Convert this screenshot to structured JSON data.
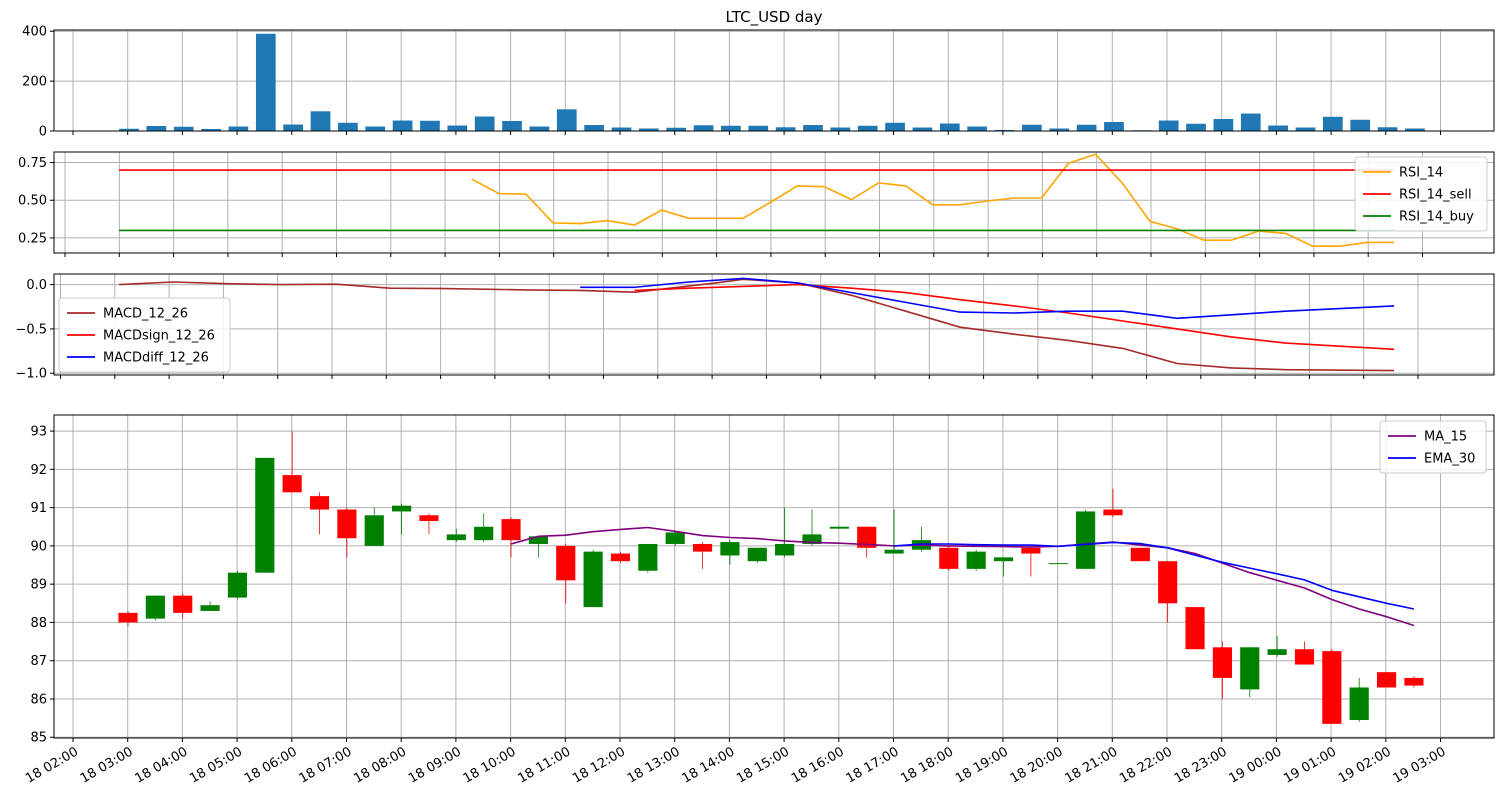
{
  "chart_data": [
    {
      "type": "bar",
      "panel": "volume",
      "title": "LTC_USD  day",
      "x_start": "2019-08-18 02:50",
      "x_step_minutes": 30,
      "values": [
        9,
        20,
        17,
        8,
        18,
        390,
        26,
        79,
        33,
        18,
        42,
        41,
        22,
        58,
        40,
        18,
        87,
        24,
        14,
        10,
        13,
        23,
        21,
        21,
        15,
        24,
        14,
        21,
        33,
        14,
        30,
        18,
        4,
        25,
        10,
        25,
        36,
        3,
        42,
        29,
        48,
        70,
        22,
        14,
        57,
        45,
        15,
        10
      ],
      "ylim": [
        0,
        405
      ],
      "yticks": [
        "0",
        "200",
        "400"
      ],
      "color": "#1f77b4",
      "grid": true
    },
    {
      "type": "line",
      "panel": "rsi",
      "ylim": [
        0.15,
        0.82
      ],
      "yticks": [
        "0.25",
        "0.50",
        "0.75"
      ],
      "legend_position": "top-right",
      "grid": true,
      "series": [
        {
          "name": "RSI_14",
          "color": "#ffa500",
          "start_index": 13,
          "values": [
            0.64,
            0.545,
            0.54,
            0.35,
            0.345,
            0.365,
            0.335,
            0.435,
            0.38,
            0.38,
            0.38,
            0.485,
            0.595,
            0.59,
            0.505,
            0.615,
            0.595,
            0.47,
            0.47,
            0.495,
            0.515,
            0.515,
            0.745,
            0.805,
            0.61,
            0.36,
            0.31,
            0.235,
            0.235,
            0.295,
            0.28,
            0.195,
            0.195,
            0.22,
            0.22
          ]
        },
        {
          "name": "RSI_14_sell",
          "color": "#ff0000",
          "start_index": 0,
          "end_index": 47,
          "constant": 0.7
        },
        {
          "name": "RSI_14_buy",
          "color": "#008000",
          "start_index": 0,
          "end_index": 47,
          "constant": 0.3
        }
      ]
    },
    {
      "type": "line",
      "panel": "macd",
      "ylim": [
        -1.02,
        0.12
      ],
      "yticks": [
        "0.0",
        "−0.5",
        "−1.0"
      ],
      "legend_position": "center-left",
      "grid": true,
      "series": [
        {
          "name": "MACD_12_26",
          "color": "#a52a2a",
          "points": [
            [
              0,
              0.0
            ],
            [
              2,
              0.03
            ],
            [
              4,
              0.01
            ],
            [
              6,
              0.0
            ],
            [
              8,
              0.005
            ],
            [
              10,
              -0.04
            ],
            [
              12,
              -0.045
            ],
            [
              15,
              -0.06
            ],
            [
              17,
              -0.065
            ],
            [
              19,
              -0.085
            ],
            [
              22,
              0.02
            ],
            [
              23,
              0.06
            ],
            [
              25,
              0.02
            ],
            [
              27,
              -0.12
            ],
            [
              29,
              -0.3
            ],
            [
              31,
              -0.48
            ],
            [
              33,
              -0.56
            ],
            [
              35,
              -0.63
            ],
            [
              37,
              -0.72
            ],
            [
              39,
              -0.89
            ],
            [
              41,
              -0.94
            ],
            [
              43,
              -0.96
            ],
            [
              47,
              -0.97
            ]
          ]
        },
        {
          "name": "MACDsign_12_26",
          "color": "#ff0000",
          "points": [
            [
              19,
              -0.065
            ],
            [
              21,
              -0.04
            ],
            [
              23,
              -0.02
            ],
            [
              25,
              0.0
            ],
            [
              27,
              -0.04
            ],
            [
              29,
              -0.09
            ],
            [
              31,
              -0.17
            ],
            [
              33,
              -0.24
            ],
            [
              35,
              -0.32
            ],
            [
              37,
              -0.41
            ],
            [
              39,
              -0.5
            ],
            [
              41,
              -0.59
            ],
            [
              43,
              -0.66
            ],
            [
              47,
              -0.73
            ]
          ]
        },
        {
          "name": "MACDdiff_12_26",
          "color": "#0000ff",
          "points": [
            [
              17,
              -0.03
            ],
            [
              19,
              -0.03
            ],
            [
              21,
              0.03
            ],
            [
              23,
              0.07
            ],
            [
              25,
              0.02
            ],
            [
              27,
              -0.09
            ],
            [
              29,
              -0.2
            ],
            [
              31,
              -0.31
            ],
            [
              33,
              -0.32
            ],
            [
              35,
              -0.3
            ],
            [
              37,
              -0.3
            ],
            [
              39,
              -0.38
            ],
            [
              41,
              -0.34
            ],
            [
              43,
              -0.3
            ],
            [
              47,
              -0.24
            ]
          ]
        }
      ]
    },
    {
      "type": "candlestick",
      "panel": "price",
      "ylim": [
        84.98,
        93.42
      ],
      "yticks": [
        "85",
        "86",
        "87",
        "88",
        "89",
        "90",
        "91",
        "92",
        "93"
      ],
      "legend_position": "top-right",
      "grid": true,
      "up_color": "#008000",
      "down_color": "#ff0000",
      "ohlc": [
        [
          88.25,
          88.3,
          87.9,
          88.0
        ],
        [
          88.1,
          88.7,
          88.05,
          88.7
        ],
        [
          88.7,
          88.75,
          88.1,
          88.25
        ],
        [
          88.3,
          88.55,
          88.3,
          88.45
        ],
        [
          88.65,
          89.35,
          88.6,
          89.3
        ],
        [
          89.3,
          92.3,
          89.3,
          92.3
        ],
        [
          91.85,
          93.0,
          91.4,
          91.4
        ],
        [
          91.3,
          91.4,
          90.3,
          90.95
        ],
        [
          90.95,
          91.0,
          89.7,
          90.2
        ],
        [
          90.0,
          91.0,
          90.0,
          90.8
        ],
        [
          90.9,
          91.1,
          90.3,
          91.05
        ],
        [
          90.8,
          90.85,
          90.3,
          90.65
        ],
        [
          90.15,
          90.45,
          90.1,
          90.3
        ],
        [
          90.15,
          90.85,
          90.1,
          90.5
        ],
        [
          90.7,
          90.75,
          89.7,
          90.15
        ],
        [
          90.05,
          90.25,
          89.7,
          90.25
        ],
        [
          90.0,
          90.05,
          88.5,
          89.1
        ],
        [
          88.4,
          89.9,
          88.4,
          89.85
        ],
        [
          89.8,
          89.85,
          89.55,
          89.6
        ],
        [
          89.35,
          90.05,
          89.3,
          90.05
        ],
        [
          90.05,
          90.4,
          90.0,
          90.35
        ],
        [
          90.05,
          90.1,
          89.4,
          89.85
        ],
        [
          89.75,
          90.15,
          89.5,
          90.1
        ],
        [
          89.6,
          89.95,
          89.55,
          89.95
        ],
        [
          89.75,
          91.0,
          89.7,
          90.05
        ],
        [
          90.05,
          90.95,
          90.0,
          90.3
        ],
        [
          90.45,
          90.5,
          90.45,
          90.5
        ],
        [
          90.5,
          90.5,
          89.7,
          89.95
        ],
        [
          89.8,
          90.95,
          89.8,
          89.9
        ],
        [
          89.9,
          90.5,
          89.85,
          90.15
        ],
        [
          89.95,
          90.0,
          89.35,
          89.4
        ],
        [
          89.4,
          89.9,
          89.35,
          89.85
        ],
        [
          89.6,
          89.7,
          89.2,
          89.7
        ],
        [
          89.95,
          90.0,
          89.2,
          89.8
        ],
        [
          89.55,
          89.55,
          89.55,
          89.55
        ],
        [
          89.4,
          90.95,
          89.4,
          90.9
        ],
        [
          90.95,
          91.5,
          90.75,
          90.8
        ],
        [
          89.95,
          89.95,
          89.6,
          89.6
        ],
        [
          89.6,
          89.6,
          88.0,
          88.5
        ],
        [
          88.4,
          88.4,
          87.3,
          87.3
        ],
        [
          87.35,
          87.5,
          86.0,
          86.55
        ],
        [
          86.25,
          87.35,
          86.05,
          87.35
        ],
        [
          87.15,
          87.65,
          87.1,
          87.3
        ],
        [
          87.3,
          87.5,
          86.9,
          86.9
        ],
        [
          87.25,
          87.3,
          85.35,
          85.35
        ],
        [
          85.45,
          86.55,
          85.4,
          86.3
        ],
        [
          86.7,
          86.7,
          86.3,
          86.3
        ],
        [
          86.55,
          86.6,
          86.3,
          86.35
        ]
      ],
      "series": [
        {
          "name": "MA_15",
          "color": "#800080",
          "start_index": 14,
          "values": [
            90.05,
            90.25,
            90.28,
            90.37,
            90.43,
            90.48,
            90.38,
            90.27,
            90.22,
            90.19,
            90.13,
            90.09,
            90.07,
            90.04,
            90.0,
            90.02,
            90.0,
            89.99,
            89.98,
            89.97,
            89.99,
            90.05,
            90.1,
            90.02,
            89.95,
            89.8,
            89.55,
            89.3,
            89.1,
            88.9,
            88.6,
            88.35,
            88.15,
            87.92
          ]
        },
        {
          "name": "EMA_30",
          "color": "#0000ff",
          "start_index": 28,
          "values": [
            90.0,
            90.05,
            90.05,
            90.03,
            90.02,
            90.02,
            89.99,
            90.04,
            90.09,
            90.06,
            89.95,
            89.76,
            89.57,
            89.42,
            89.27,
            89.11,
            88.84,
            88.67,
            88.5,
            88.35
          ]
        }
      ]
    }
  ],
  "x_tick_labels": [
    "18 02:00",
    "18 03:00",
    "18 04:00",
    "18 05:00",
    "18 06:00",
    "18 07:00",
    "18 08:00",
    "18 09:00",
    "18 10:00",
    "18 11:00",
    "18 12:00",
    "18 13:00",
    "18 14:00",
    "18 15:00",
    "18 16:00",
    "18 17:00",
    "18 18:00",
    "18 19:00",
    "18 20:00",
    "18 21:00",
    "18 22:00",
    "18 23:00",
    "19 00:00",
    "19 01:00",
    "19 02:00",
    "19 03:00"
  ]
}
